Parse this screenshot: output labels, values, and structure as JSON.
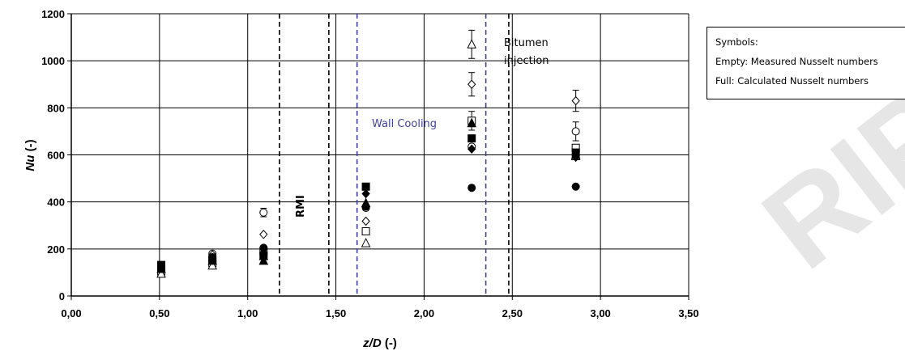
{
  "chart_data": {
    "type": "scatter",
    "xlabel_italic": "z/D",
    "xlabel_unit": " (-)",
    "ylabel_italic": "Nu",
    "ylabel_unit": " (-)",
    "xlim": [
      0,
      3.5
    ],
    "ylim": [
      0,
      1200
    ],
    "x_ticks": [
      0,
      0.5,
      1,
      1.5,
      2,
      2.5,
      3,
      3.5
    ],
    "x_tick_labels": [
      "0,00",
      "0,50",
      "1,00",
      "1,50",
      "2,00",
      "2,50",
      "3,00",
      "3,50"
    ],
    "y_ticks": [
      0,
      200,
      400,
      600,
      800,
      1000,
      1200
    ],
    "y_tick_labels": [
      "0",
      "200",
      "400",
      "600",
      "800",
      "1000",
      "1200"
    ],
    "grid": true,
    "vertical_lines": [
      {
        "x": 1.18,
        "color": "#000000",
        "dashed": true
      },
      {
        "x": 1.46,
        "color": "#000000",
        "dashed": true
      },
      {
        "x": 1.62,
        "color": "#4040a0",
        "dashed": true
      },
      {
        "x": 2.35,
        "color": "#4040a0",
        "dashed": true
      },
      {
        "x": 2.48,
        "color": "#000000",
        "dashed": true
      }
    ],
    "annotations": {
      "rmi": "RMI",
      "wall_cooling": "Wall Cooling",
      "bitumen_line1": "Bitumen",
      "bitumen_line2": "injection"
    },
    "series": [
      {
        "marker": "circle",
        "filled": false,
        "x": [
          0.51,
          0.8,
          1.09,
          1.67,
          2.27,
          2.86
        ],
        "y": [
          110,
          180,
          355,
          375,
          635,
          700
        ],
        "err": [
          0,
          0,
          18,
          0,
          0,
          40
        ]
      },
      {
        "marker": "diamond",
        "filled": false,
        "x": [
          0.51,
          0.8,
          1.09,
          1.67,
          2.27,
          2.86
        ],
        "y": [
          115,
          175,
          262,
          318,
          900,
          830
        ],
        "err": [
          0,
          0,
          0,
          0,
          50,
          45
        ]
      },
      {
        "marker": "square",
        "filled": false,
        "x": [
          0.51,
          0.8,
          1.09,
          1.67,
          2.27,
          2.86
        ],
        "y": [
          105,
          140,
          190,
          275,
          745,
          630
        ],
        "err": [
          0,
          0,
          0,
          0,
          40,
          0
        ]
      },
      {
        "marker": "triangle",
        "filled": false,
        "x": [
          0.51,
          0.8,
          1.09,
          1.67,
          2.27,
          2.86
        ],
        "y": [
          95,
          130,
          170,
          225,
          1070,
          595
        ],
        "err": [
          0,
          0,
          0,
          0,
          60,
          0
        ]
      },
      {
        "marker": "circle",
        "filled": true,
        "x": [
          0.51,
          0.8,
          1.09,
          1.67,
          2.27,
          2.86
        ],
        "y": [
          120,
          165,
          205,
          380,
          460,
          465
        ],
        "err": [
          0,
          0,
          0,
          0,
          0,
          0
        ]
      },
      {
        "marker": "diamond",
        "filled": true,
        "x": [
          0.51,
          0.8,
          1.09,
          1.67,
          2.27,
          2.86
        ],
        "y": [
          125,
          160,
          185,
          435,
          625,
          590
        ],
        "err": [
          0,
          0,
          0,
          0,
          0,
          0
        ]
      },
      {
        "marker": "square",
        "filled": true,
        "x": [
          0.51,
          0.8,
          1.09,
          1.67,
          2.27,
          2.86
        ],
        "y": [
          132,
          155,
          170,
          465,
          670,
          610
        ],
        "err": [
          0,
          0,
          0,
          0,
          0,
          0
        ]
      },
      {
        "marker": "triangle",
        "filled": true,
        "x": [
          0.51,
          0.8,
          1.09,
          1.67,
          2.27,
          2.86
        ],
        "y": [
          115,
          150,
          150,
          395,
          735,
          600
        ],
        "err": [
          0,
          0,
          0,
          0,
          0,
          0
        ]
      }
    ]
  },
  "legend": {
    "line1": "Symbols:",
    "line2": "Empty:  Measured Nusselt numbers",
    "line3": "Full: Calculated Nusselt numbers"
  },
  "watermark": "RIP",
  "colors": {
    "axis": "#000000",
    "grid": "#000000",
    "blue_annotation": "#4040a0",
    "watermark": "#e6e6e6"
  }
}
